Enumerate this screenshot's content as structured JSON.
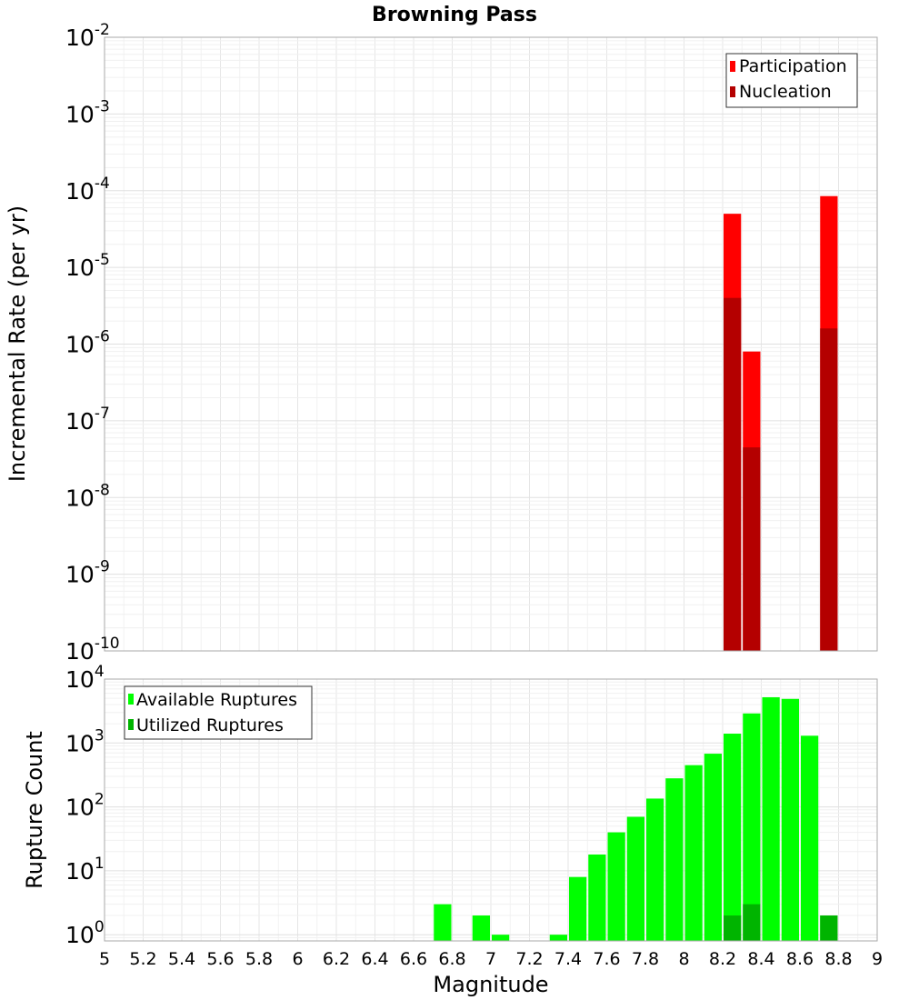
{
  "title": "Browning Pass",
  "chart_data": [
    {
      "type": "bar",
      "panel": "top",
      "ylabel": "Incremental Rate (per yr)",
      "yscale": "log",
      "ylim": [
        1e-10,
        0.01
      ],
      "xlim": [
        5,
        9
      ],
      "grid": true,
      "legend_position": "top-right",
      "yticks": [
        {
          "base": "10",
          "exp": "-10"
        },
        {
          "base": "10",
          "exp": "-9"
        },
        {
          "base": "10",
          "exp": "-8"
        },
        {
          "base": "10",
          "exp": "-7"
        },
        {
          "base": "10",
          "exp": "-6"
        },
        {
          "base": "10",
          "exp": "-5"
        },
        {
          "base": "10",
          "exp": "-4"
        },
        {
          "base": "10",
          "exp": "-3"
        },
        {
          "base": "10",
          "exp": "-2"
        }
      ],
      "bar_width": 0.1,
      "series": [
        {
          "name": "Participation",
          "color": "#ff0000",
          "x": [
            8.25,
            8.35,
            8.75
          ],
          "values": [
            5e-05,
            8e-07,
            8.5e-05
          ]
        },
        {
          "name": "Nucleation",
          "color": "#b40000",
          "x": [
            8.25,
            8.35,
            8.75
          ],
          "values": [
            4e-06,
            4.5e-08,
            1.6e-06
          ]
        }
      ]
    },
    {
      "type": "bar",
      "panel": "bottom",
      "ylabel": "Rupture Count",
      "xlabel": "Magnitude",
      "yscale": "log",
      "ylim": [
        0.8,
        10000
      ],
      "xlim": [
        5,
        9
      ],
      "grid": true,
      "legend_position": "top-left",
      "yticks": [
        {
          "value": 1,
          "base": "10",
          "exp": "0"
        },
        {
          "value": 10,
          "base": "10",
          "exp": "1"
        },
        {
          "value": 100,
          "base": "10",
          "exp": "2"
        },
        {
          "value": 1000,
          "base": "10",
          "exp": "3"
        },
        {
          "value": 10000,
          "base": "10",
          "exp": "4"
        }
      ],
      "xticks": [
        "5",
        "5.2",
        "5.4",
        "5.6",
        "5.8",
        "6",
        "6.2",
        "6.4",
        "6.6",
        "6.8",
        "7",
        "7.2",
        "7.4",
        "7.6",
        "7.8",
        "8",
        "8.2",
        "8.4",
        "8.6",
        "8.8",
        "9"
      ],
      "bar_width": 0.1,
      "series": [
        {
          "name": "Available Ruptures",
          "color": "#00ff00",
          "x": [
            6.75,
            6.95,
            7.05,
            7.35,
            7.45,
            7.55,
            7.65,
            7.75,
            7.85,
            7.95,
            8.05,
            8.15,
            8.25,
            8.35,
            8.45,
            8.55,
            8.65,
            8.75
          ],
          "values": [
            3,
            2,
            1,
            1,
            8,
            18,
            40,
            70,
            135,
            280,
            450,
            680,
            1400,
            2900,
            5200,
            4900,
            1300,
            2
          ]
        },
        {
          "name": "Utilized Ruptures",
          "color": "#00b400",
          "x": [
            8.25,
            8.35,
            8.75
          ],
          "values": [
            2,
            3,
            2
          ]
        }
      ]
    }
  ]
}
